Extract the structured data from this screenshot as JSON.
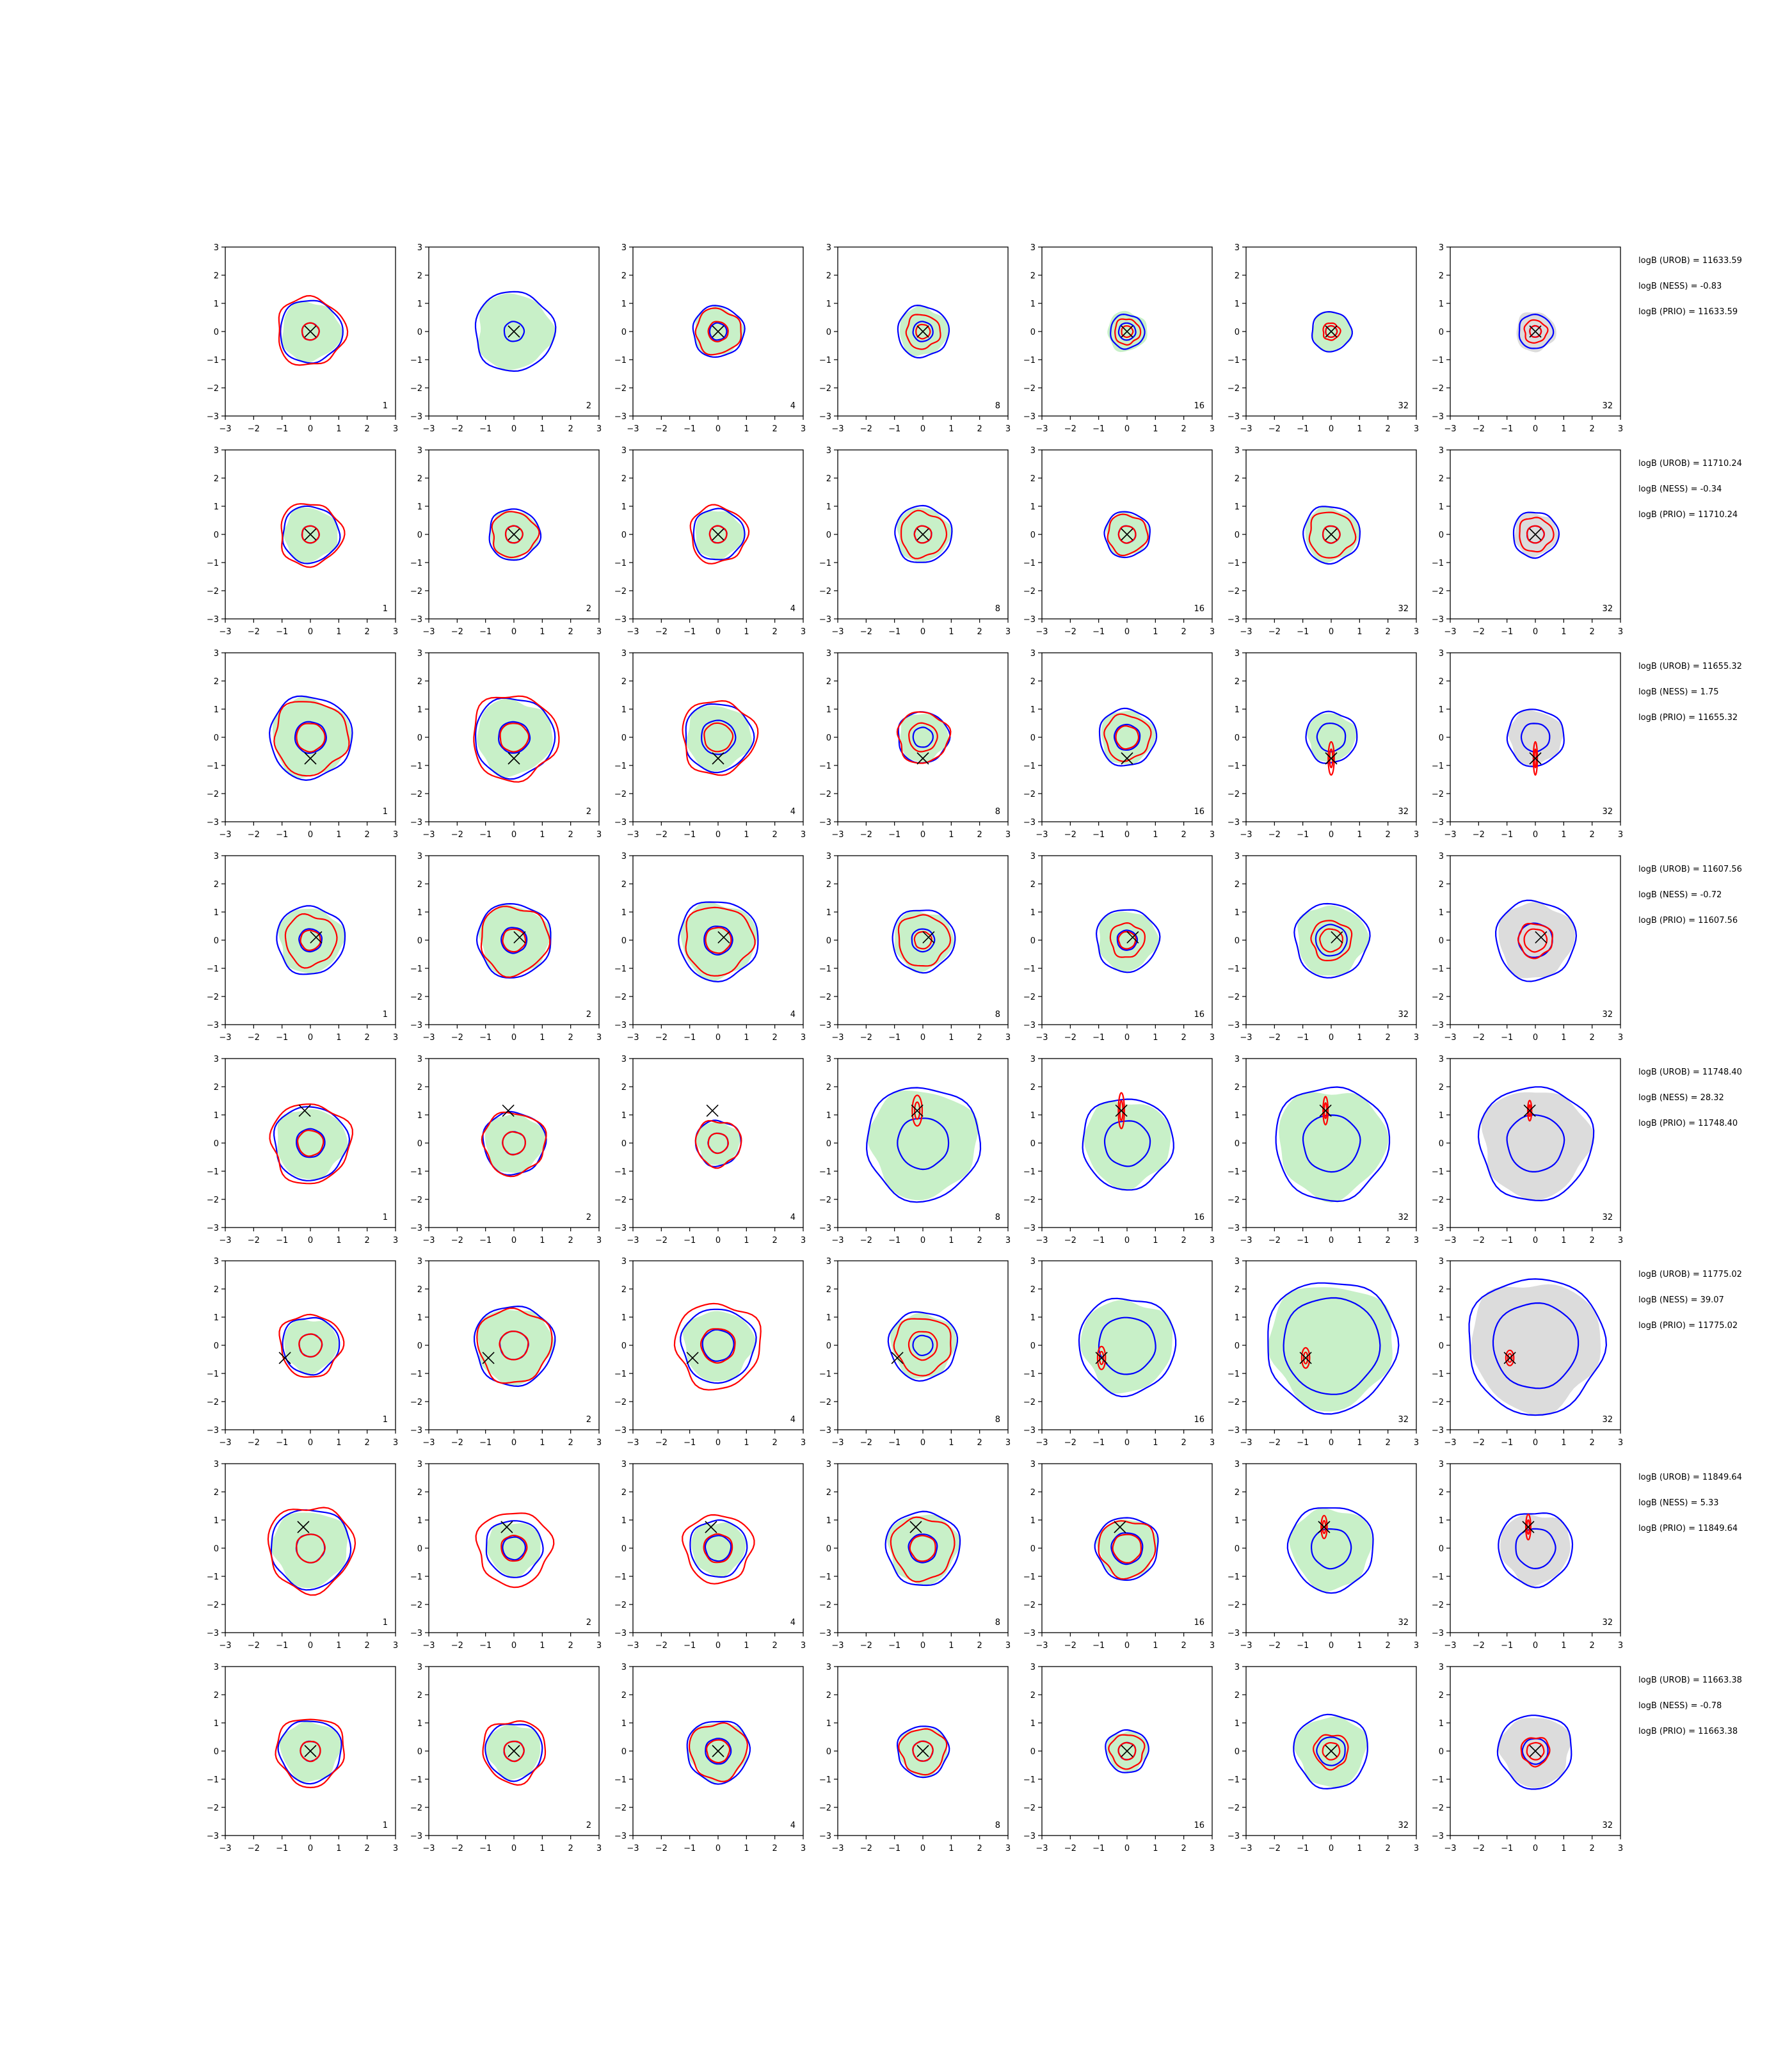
{
  "chart_data": {
    "type": "contour-grid",
    "title": "",
    "xlabel": "",
    "ylabel": "",
    "xlim": [
      -3,
      3
    ],
    "ylim": [
      -3,
      3
    ],
    "ticks": [
      "−3",
      "−2",
      "−1",
      "0",
      "1",
      "2",
      "3"
    ],
    "tick_values": [
      -3,
      -2,
      -1,
      0,
      1,
      2,
      3
    ],
    "columns": [
      "1",
      "2",
      "4",
      "8",
      "16",
      "32",
      "32"
    ],
    "colors": {
      "density_fill": "#c8f0c8",
      "density_fill_last_column": "#dcdcdc",
      "contour_blue": "#0000ff",
      "contour_red": "#ff0000",
      "marker": "#000000"
    },
    "rows": [
      {
        "stats": [
          "logB (UROB) = 11633.59",
          "logB (NESS) = -0.83",
          "logB (PRIO) = 11633.59"
        ],
        "marker": [
          0.0,
          0.0
        ],
        "blue_radii": [
          [
            1.1,
            0.3
          ],
          [
            1.4,
            0.35
          ],
          [
            0.9,
            0.3
          ],
          [
            0.9,
            0.35
          ],
          [
            0.6,
            0.3
          ],
          [
            0.7,
            0.2
          ],
          [
            0.6,
            0.2
          ]
        ],
        "red_radii": [
          [
            1.2,
            0.3
          ],
          [
            0.0,
            0.0
          ],
          [
            0.8,
            0.35
          ],
          [
            0.6,
            0.25
          ],
          [
            0.45,
            0.2
          ],
          [
            0.3,
            0.2
          ],
          [
            0.4,
            0.2
          ]
        ]
      },
      {
        "stats": [
          "logB (UROB) = 11710.24",
          "logB (NESS) = -0.34",
          "logB (PRIO) = 11710.24"
        ],
        "marker": [
          0.0,
          0.0
        ],
        "blue_radii": [
          [
            1.0,
            0.3
          ],
          [
            0.9,
            0.3
          ],
          [
            0.9,
            0.3
          ],
          [
            1.0,
            0.3
          ],
          [
            0.8,
            0.3
          ],
          [
            1.0,
            0.3
          ],
          [
            0.8,
            0.3
          ]
        ],
        "red_radii": [
          [
            1.1,
            0.3
          ],
          [
            0.8,
            0.3
          ],
          [
            1.0,
            0.3
          ],
          [
            0.8,
            0.3
          ],
          [
            0.7,
            0.3
          ],
          [
            0.8,
            0.3
          ],
          [
            0.6,
            0.3
          ]
        ]
      },
      {
        "stats": [
          "logB (UROB) = 11655.32",
          "logB (NESS) = 1.75",
          "logB (PRIO) = 11655.32"
        ],
        "marker": [
          0.0,
          -0.75
        ],
        "blue_radii": [
          [
            1.45,
            0.55
          ],
          [
            1.4,
            0.55
          ],
          [
            1.2,
            0.6
          ],
          [
            0.9,
            0.35
          ],
          [
            1.0,
            0.45
          ],
          [
            0.9,
            0.5
          ],
          [
            1.0,
            0.5
          ]
        ],
        "red_radii": [
          [
            1.3,
            0.5
          ],
          [
            1.5,
            0.5
          ],
          [
            1.3,
            0.5
          ],
          [
            0.9,
            0.5
          ],
          [
            0.8,
            0.4
          ],
          [
            0.3,
            1.3
          ],
          [
            0.2,
            1.3
          ]
        ]
      },
      {
        "stats": [
          "logB (UROB) = 11607.56",
          "logB (NESS) = -0.72",
          "logB (PRIO) = 11607.56"
        ],
        "marker": [
          0.2,
          0.1
        ],
        "blue_radii": [
          [
            1.2,
            0.4
          ],
          [
            1.3,
            0.45
          ],
          [
            1.4,
            0.5
          ],
          [
            1.1,
            0.4
          ],
          [
            1.1,
            0.35
          ],
          [
            1.3,
            0.55
          ],
          [
            1.4,
            0.6
          ]
        ],
        "red_radii": [
          [
            0.9,
            0.35
          ],
          [
            1.2,
            0.4
          ],
          [
            1.2,
            0.45
          ],
          [
            0.9,
            0.3
          ],
          [
            0.6,
            0.3
          ],
          [
            0.7,
            0.4
          ],
          [
            0.6,
            0.4
          ]
        ]
      },
      {
        "stats": [
          "logB (UROB) = 11748.40",
          "logB (NESS) = 28.32",
          "logB (PRIO) = 11748.40"
        ],
        "marker": [
          -0.2,
          1.15
        ],
        "blue_radii": [
          [
            1.3,
            0.5
          ],
          [
            1.1,
            0.4
          ],
          [
            0.8,
            0.35
          ],
          [
            2.0,
            0.9
          ],
          [
            1.6,
            0.8
          ],
          [
            2.0,
            1.0
          ],
          [
            2.0,
            1.0
          ]
        ],
        "red_radii": [
          [
            1.4,
            0.45
          ],
          [
            1.1,
            0.4
          ],
          [
            0.8,
            0.35
          ],
          [
            0.5,
            1.2
          ],
          [
            0.3,
            1.4
          ],
          [
            0.25,
            1.1
          ],
          [
            0.2,
            0.8
          ]
        ]
      },
      {
        "stats": [
          "logB (UROB) = 11775.02",
          "logB (NESS) = 39.07",
          "logB (PRIO) = 11775.02"
        ],
        "marker": [
          -0.9,
          -0.45
        ],
        "blue_radii": [
          [
            1.0,
            0.4
          ],
          [
            1.4,
            0.5
          ],
          [
            1.3,
            0.55
          ],
          [
            1.2,
            0.35
          ],
          [
            1.7,
            1.0
          ],
          [
            2.3,
            1.7
          ],
          [
            2.4,
            1.5
          ]
        ],
        "red_radii": [
          [
            1.1,
            0.4
          ],
          [
            1.3,
            0.5
          ],
          [
            1.5,
            0.6
          ],
          [
            1.0,
            0.5
          ],
          [
            0.4,
            0.9
          ],
          [
            0.4,
            0.8
          ],
          [
            0.4,
            0.6
          ]
        ]
      },
      {
        "stats": [
          "logB (UROB) = 11849.64",
          "logB (NESS) = 5.33",
          "logB (PRIO) = 11849.64"
        ],
        "marker": [
          -0.25,
          0.75
        ],
        "blue_radii": [
          [
            1.4,
            0.5
          ],
          [
            1.0,
            0.4
          ],
          [
            1.0,
            0.45
          ],
          [
            1.3,
            0.5
          ],
          [
            1.1,
            0.55
          ],
          [
            1.5,
            0.7
          ],
          [
            1.3,
            0.7
          ]
        ],
        "red_radii": [
          [
            1.5,
            0.5
          ],
          [
            1.3,
            0.45
          ],
          [
            1.2,
            0.5
          ],
          [
            1.1,
            0.45
          ],
          [
            1.0,
            0.5
          ],
          [
            0.3,
            0.9
          ],
          [
            0.25,
            1.0
          ]
        ]
      },
      {
        "stats": [
          "logB (UROB) = 11663.38",
          "logB (NESS) = -0.78",
          "logB (PRIO) = 11663.38"
        ],
        "marker": [
          0.0,
          0.0
        ],
        "blue_radii": [
          [
            1.1,
            0.35
          ],
          [
            1.0,
            0.35
          ],
          [
            1.1,
            0.45
          ],
          [
            0.9,
            0.35
          ],
          [
            0.75,
            0.3
          ],
          [
            1.3,
            0.5
          ],
          [
            1.3,
            0.45
          ]
        ],
        "red_radii": [
          [
            1.2,
            0.35
          ],
          [
            1.1,
            0.35
          ],
          [
            1.0,
            0.4
          ],
          [
            0.8,
            0.35
          ],
          [
            0.6,
            0.3
          ],
          [
            0.6,
            0.3
          ],
          [
            0.5,
            0.3
          ]
        ]
      }
    ]
  }
}
